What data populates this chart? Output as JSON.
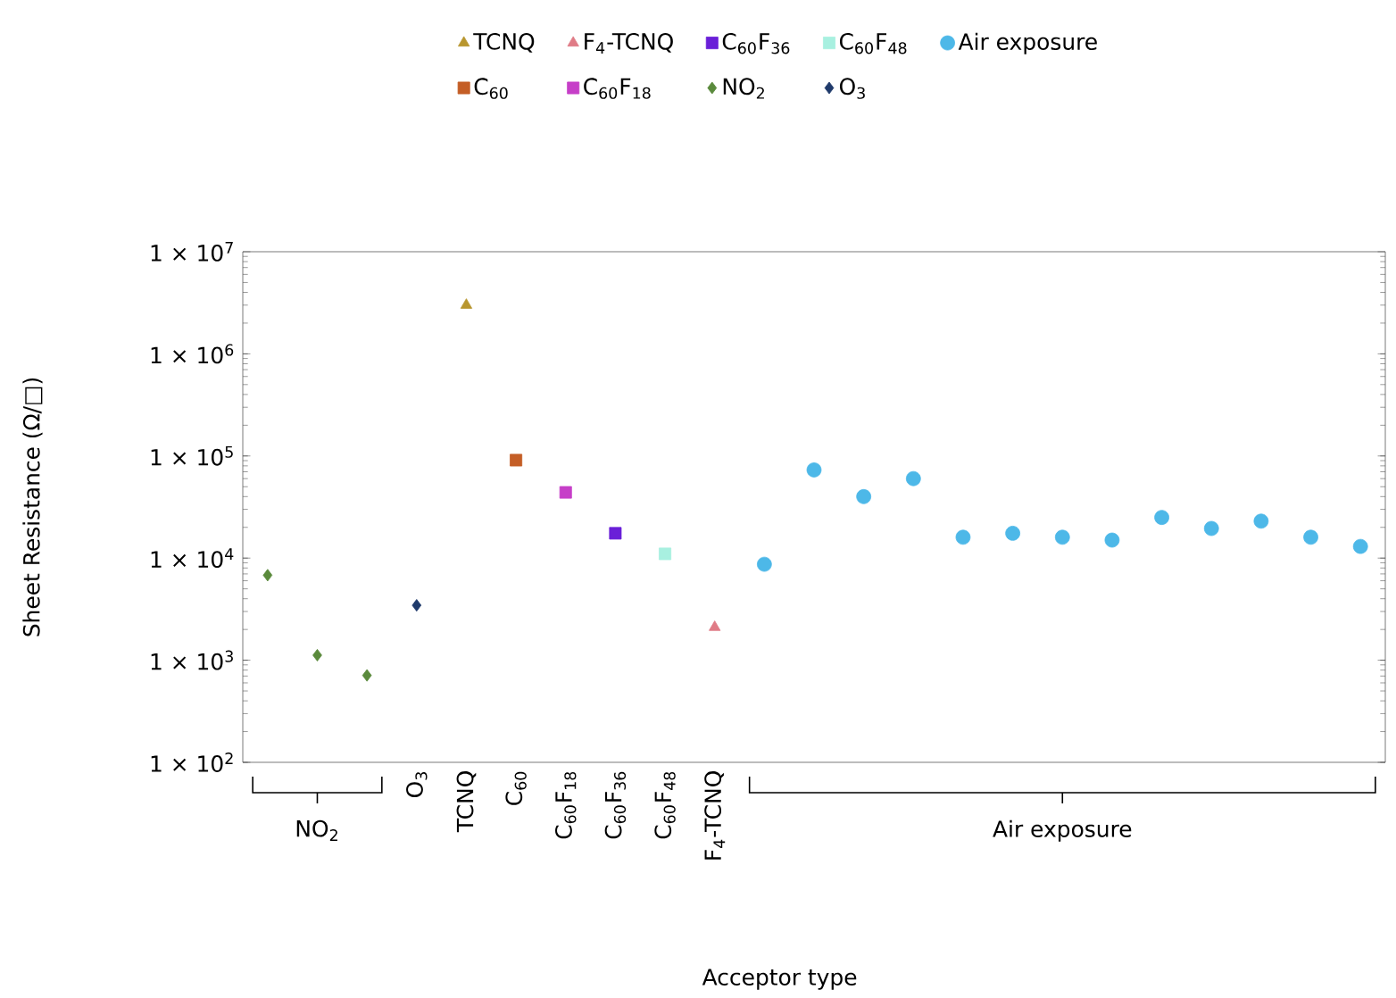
{
  "chart_data": {
    "type": "scatter",
    "xlabel": "Acceptor type",
    "ylabel": "Sheet Resistance (Ω/□)",
    "log": "y",
    "legend": "top",
    "grid": false,
    "categories": [
      null,
      null,
      null,
      "O$_{3}$",
      "TCNQ",
      "C$_{60}$",
      "C$_{60}$F$_{18}$",
      "C$_{60}$F$_{36}$",
      "C$_{60}$F$_{48}$",
      "F$_{4}$-TCNQ",
      null,
      null,
      null,
      null,
      null,
      null,
      null,
      null,
      null,
      null,
      null,
      null,
      null
    ],
    "ylim": [
      100,
      10000000
    ],
    "yticks": [
      {
        "value": 100,
        "label": "1 × 10$^{2}$"
      },
      {
        "value": 1000,
        "label": "1 × 10$^{3}$"
      },
      {
        "value": 10000,
        "label": "1 × 10$^{4}$"
      },
      {
        "value": 100000,
        "label": "1 × 10$^{5}$"
      },
      {
        "value": 1000000,
        "label": "1 × 10$^{6}$"
      },
      {
        "value": 10000000,
        "label": "1 × 10$^{7}$"
      }
    ],
    "annotations": [
      "NO$_{2}$",
      "Air exposure"
    ],
    "series": [
      {
        "name": "TCNQ",
        "color": "#b8962e",
        "marker": "triangle",
        "values": [
          null,
          null,
          null,
          null,
          3000000,
          null,
          null,
          null,
          null,
          null,
          null,
          null,
          null,
          null,
          null,
          null,
          null,
          null,
          null,
          null,
          null,
          null,
          null
        ]
      },
      {
        "name": "F$_{4}$-TCNQ",
        "color": "#e07b86",
        "marker": "triangle",
        "values": [
          null,
          null,
          null,
          null,
          null,
          null,
          null,
          null,
          null,
          2100,
          null,
          null,
          null,
          null,
          null,
          null,
          null,
          null,
          null,
          null,
          null,
          null,
          null
        ]
      },
      {
        "name": "C$_{60}$F$_{36}$",
        "color": "#6a1fd8",
        "marker": "square",
        "values": [
          null,
          null,
          null,
          null,
          null,
          null,
          null,
          17500,
          null,
          null,
          null,
          null,
          null,
          null,
          null,
          null,
          null,
          null,
          null,
          null,
          null,
          null,
          null
        ]
      },
      {
        "name": "C$_{60}$F$_{48}$",
        "color": "#a8f0e0",
        "marker": "square",
        "values": [
          null,
          null,
          null,
          null,
          null,
          null,
          null,
          null,
          11000,
          null,
          null,
          null,
          null,
          null,
          null,
          null,
          null,
          null,
          null,
          null,
          null,
          null,
          null
        ]
      },
      {
        "name": "Air exposure",
        "color": "#4db8e8",
        "marker": "circle",
        "values": [
          null,
          null,
          null,
          null,
          null,
          null,
          null,
          null,
          null,
          null,
          8700,
          73000,
          40000,
          60000,
          16000,
          17500,
          16000,
          15000,
          25000,
          19500,
          23000,
          16000,
          13000
        ]
      },
      {
        "name": "C$_{60}$",
        "color": "#c45e26",
        "marker": "square",
        "values": [
          null,
          null,
          null,
          null,
          null,
          91000,
          null,
          null,
          null,
          null,
          null,
          null,
          null,
          null,
          null,
          null,
          null,
          null,
          null,
          null,
          null,
          null,
          null
        ]
      },
      {
        "name": "C$_{60}$F$_{18}$",
        "color": "#c63fc8",
        "marker": "square",
        "values": [
          null,
          null,
          null,
          null,
          null,
          null,
          44000,
          null,
          null,
          null,
          null,
          null,
          null,
          null,
          null,
          null,
          null,
          null,
          null,
          null,
          null,
          null,
          null
        ]
      },
      {
        "name": "NO$_{2}$",
        "color": "#5a8a3c",
        "marker": "diamond",
        "values": [
          6800,
          1120,
          710,
          null,
          null,
          null,
          null,
          null,
          null,
          null,
          null,
          null,
          null,
          null,
          null,
          null,
          null,
          null,
          null,
          null,
          null,
          null,
          null
        ]
      },
      {
        "name": "O$_{3}$",
        "color": "#1f3a6b",
        "marker": "diamond",
        "values": [
          null,
          null,
          null,
          3450,
          null,
          null,
          null,
          null,
          null,
          null,
          null,
          null,
          null,
          null,
          null,
          null,
          null,
          null,
          null,
          null,
          null,
          null,
          null
        ]
      }
    ]
  }
}
